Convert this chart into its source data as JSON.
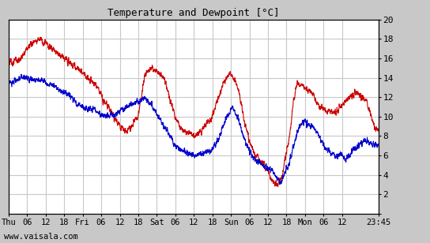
{
  "title": "Temperature and Dewpoint [°C]",
  "ylim": [
    0,
    20
  ],
  "yticks": [
    0,
    2,
    4,
    6,
    8,
    10,
    12,
    14,
    16,
    18,
    20
  ],
  "xtick_labels": [
    "Thu",
    "06",
    "12",
    "18",
    "Fri",
    "06",
    "12",
    "18",
    "Sat",
    "06",
    "12",
    "18",
    "Sun",
    "06",
    "12",
    "18",
    "Mon",
    "06",
    "12",
    "23:45"
  ],
  "footer": "www.vaisala.com",
  "temp_color": "#cc0000",
  "dewp_color": "#0000cc",
  "bg_color": "#c8c8c8",
  "plot_bg_color": "#ffffff",
  "grid_color": "#c8c8c8",
  "line_width": 0.8
}
